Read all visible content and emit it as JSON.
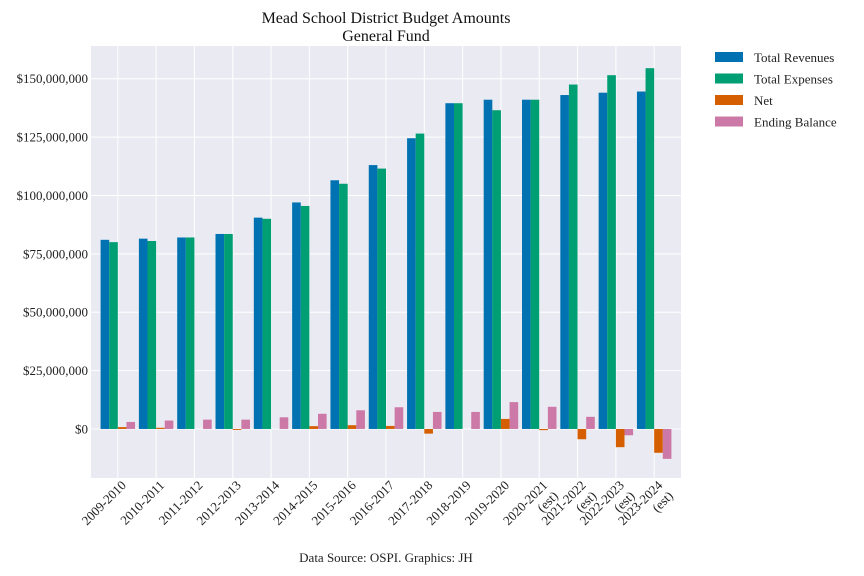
{
  "chart_data": {
    "type": "bar",
    "title": "Mead School District Budget Amounts",
    "subtitle": "General Fund",
    "xlabel": "",
    "ylabel": "",
    "source": "Data Source: OSPI. Graphics: JH",
    "categories": [
      "2009-2010",
      "2010-2011",
      "2011-2012",
      "2012-2013",
      "2013-2014",
      "2014-2015",
      "2015-2016",
      "2016-2017",
      "2017-2018",
      "2018-2019",
      "2019-2020",
      "2020-2021\n(est)",
      "2021-2022\n(est)",
      "2022-2023\n(est)",
      "2023-2024\n(est)"
    ],
    "ylim": [
      -21000000,
      164000000
    ],
    "yticks": [
      0,
      25000000,
      50000000,
      75000000,
      100000000,
      125000000,
      150000000
    ],
    "ytick_labels": [
      "$0",
      "$25,000,000",
      "$50,000,000",
      "$75,000,000",
      "$100,000,000",
      "$125,000,000",
      "$150,000,000"
    ],
    "grid": true,
    "legend_position": "outside-top-right",
    "series": [
      {
        "name": "Total Revenues",
        "color": "#0072b2",
        "values": [
          81000000,
          81500000,
          82000000,
          83500000,
          90500000,
          97000000,
          106500000,
          113000000,
          124500000,
          139500000,
          141000000,
          141000000,
          143000000,
          144000000,
          144500000
        ]
      },
      {
        "name": "Total Expenses",
        "color": "#009e73",
        "values": [
          80000000,
          80500000,
          82000000,
          83500000,
          90000000,
          95500000,
          105000000,
          111500000,
          126500000,
          139500000,
          136500000,
          141000000,
          147500000,
          151500000,
          154500000
        ]
      },
      {
        "name": "Net",
        "color": "#d55e00",
        "values": [
          800000,
          500000,
          0,
          -400000,
          0,
          1200000,
          1600000,
          1300000,
          -2000000,
          0,
          4300000,
          -500000,
          -4400000,
          -7800000,
          -10200000
        ]
      },
      {
        "name": "Ending Balance",
        "color": "#cc79a7",
        "values": [
          3000000,
          3600000,
          4000000,
          4000000,
          5000000,
          6500000,
          8000000,
          9300000,
          7300000,
          7300000,
          11500000,
          9500000,
          5200000,
          -2700000,
          -12800000
        ]
      }
    ]
  }
}
